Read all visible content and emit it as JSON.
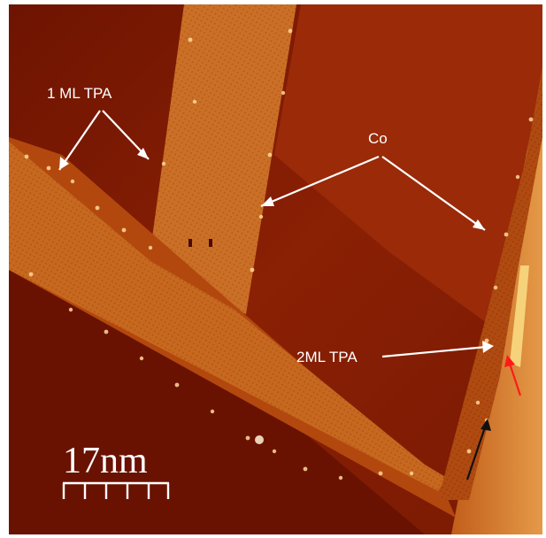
{
  "image": {
    "kind": "STM micrograph",
    "palette": {
      "background": "#8a2004",
      "terrace": "#b44a0c",
      "strip": "#d27a30",
      "bright": "#f6d27a",
      "arrow_white": "#ffffff",
      "arrow_red": "#ff1a1a",
      "arrow_black": "#111111"
    }
  },
  "labels": {
    "one_ml_tpa": "1 ML TPA",
    "co": "Co",
    "two_ml_tpa": "2ML TPA"
  },
  "scale_bar": {
    "text": "17nm",
    "ticks": 5
  }
}
